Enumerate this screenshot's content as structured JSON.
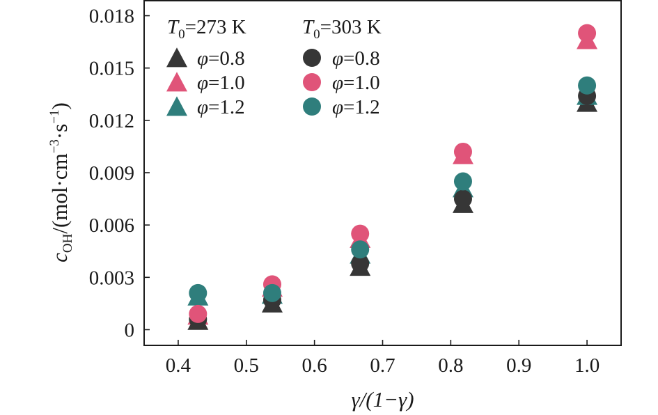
{
  "chart_data": {
    "type": "scatter",
    "xlabel": "γ/(1−γ)",
    "ylabel": {
      "var": "c",
      "var_sub": "OH",
      "unit_prefix": "/(mol·cm",
      "unit_exp1": "−3",
      "unit_mid": "·s",
      "unit_exp2": "−1",
      "unit_suffix": ")"
    },
    "xlim": [
      0.35,
      1.05
    ],
    "ylim": [
      -0.0009,
      0.0189
    ],
    "x_ticks": [
      0.4,
      0.5,
      0.6,
      0.7,
      0.8,
      0.9,
      1.0
    ],
    "x_tick_labels": [
      "0.4",
      "0.5",
      "0.6",
      "0.7",
      "0.8",
      "0.9",
      "1.0"
    ],
    "y_ticks": [
      0,
      0.003,
      0.006,
      0.009,
      0.012,
      0.015,
      0.018
    ],
    "y_tick_labels": [
      "0",
      "0.003",
      "0.006",
      "0.009",
      "0.012",
      "0.015",
      "0.018"
    ],
    "grid": false,
    "legend_placement": "top-left",
    "legend": {
      "groups": [
        {
          "title_var": "T",
          "title_sub": "0",
          "title_rest": "=273 K",
          "marker": "triangle",
          "entries": [
            {
              "label": "φ=0.8",
              "color": "#363636"
            },
            {
              "label": "φ=1.0",
              "color": "#e05479"
            },
            {
              "label": "φ=1.2",
              "color": "#2f7e7c"
            }
          ]
        },
        {
          "title_var": "T",
          "title_sub": "0",
          "title_rest": "=303 K",
          "marker": "circle",
          "entries": [
            {
              "label": "φ=0.8",
              "color": "#363636"
            },
            {
              "label": "φ=1.0",
              "color": "#e05479"
            },
            {
              "label": "φ=1.2",
              "color": "#2f7e7c"
            }
          ]
        }
      ]
    },
    "x": [
      0.429,
      0.538,
      0.667,
      0.818,
      1.0
    ],
    "series": [
      {
        "group": "T0=273 K",
        "phi": "0.8",
        "marker": "triangle",
        "color": "#363636",
        "values": [
          0.0006,
          0.0016,
          0.0037,
          0.0073,
          0.0131
        ]
      },
      {
        "group": "T0=273 K",
        "phi": "1.0",
        "marker": "triangle",
        "color": "#e05479",
        "values": [
          0.0009,
          0.0025,
          0.0053,
          0.0101,
          0.0167
        ]
      },
      {
        "group": "T0=273 K",
        "phi": "1.2",
        "marker": "triangle",
        "color": "#2f7e7c",
        "values": [
          0.002,
          0.0021,
          0.0044,
          0.0082,
          0.0135
        ]
      },
      {
        "group": "T0=303 K",
        "phi": "0.8",
        "marker": "circle",
        "color": "#363636",
        "values": [
          0.0006,
          0.0017,
          0.0038,
          0.0075,
          0.0134
        ]
      },
      {
        "group": "T0=303 K",
        "phi": "1.0",
        "marker": "circle",
        "color": "#e05479",
        "values": [
          0.0009,
          0.0026,
          0.0055,
          0.0102,
          0.017
        ]
      },
      {
        "group": "T0=303 K",
        "phi": "1.2",
        "marker": "circle",
        "color": "#2f7e7c",
        "values": [
          0.0021,
          0.0021,
          0.0046,
          0.0085,
          0.014
        ]
      }
    ]
  }
}
